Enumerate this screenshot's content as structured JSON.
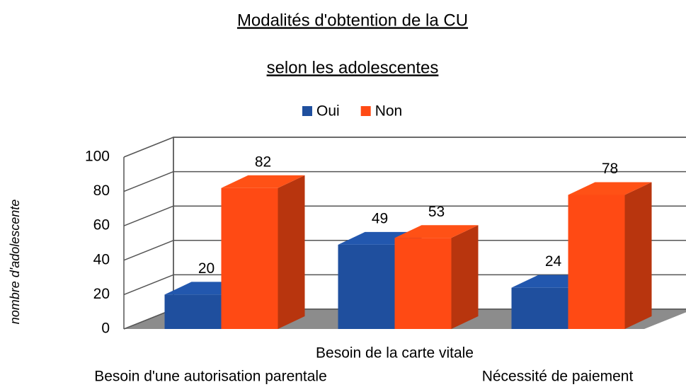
{
  "chart_data": {
    "type": "bar3d",
    "title": "Modalités d'obtention de la CU",
    "subtitle": "selon les adolescentes",
    "y_label": "nombre d'adolescente",
    "categories": [
      "Besoin d'une autorisation parentale",
      "Besoin de la carte vitale",
      "Nécessité de paiement"
    ],
    "series": [
      {
        "name": "Oui",
        "color": "#1f4f9e",
        "values": [
          20,
          49,
          24
        ]
      },
      {
        "name": "Non",
        "color": "#ff4a14",
        "values": [
          82,
          53,
          78
        ]
      }
    ],
    "ylim": [
      0,
      100
    ],
    "yticks": [
      0,
      20,
      40,
      60,
      80,
      100
    ],
    "grid": true,
    "legend": "top"
  }
}
